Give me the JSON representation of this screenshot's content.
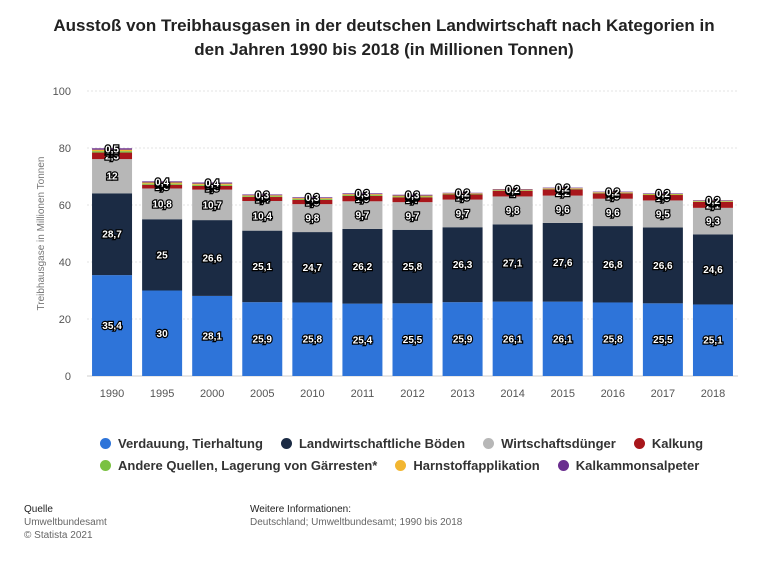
{
  "chart_data": {
    "type": "bar",
    "stacked": true,
    "title": "Ausstoß von Treibhausgasen in der deutschen Landwirtschaft nach Kategorien in den Jahren 1990 bis 2018 (in Millionen Tonnen)",
    "title_lines": [
      "Ausstoß von Treibhausgasen in der deutschen Landwirtschaft nach Kategorien in",
      "den Jahren 1990 bis 2018 (in Millionen Tonnen)"
    ],
    "xlabel": "",
    "ylabel": "Treibhausgase in Millionen Tonnen",
    "ylim": [
      0,
      100
    ],
    "yticks": [
      0,
      20,
      40,
      60,
      80,
      100
    ],
    "categories": [
      "1990",
      "1995",
      "2000",
      "2005",
      "2010",
      "2011",
      "2012",
      "2013",
      "2014",
      "2015",
      "2016",
      "2017",
      "2018"
    ],
    "series": [
      {
        "name": "Verdauung, Tierhaltung",
        "color": "#2e74d9",
        "values": [
          35.4,
          30,
          28.1,
          25.9,
          25.8,
          25.4,
          25.5,
          25.9,
          26.1,
          26.1,
          25.8,
          25.5,
          25.1
        ],
        "labels": [
          "35,4",
          "30",
          "28,1",
          "25,9",
          "25,8",
          "25,4",
          "25,5",
          "25,9",
          "26,1",
          "26,1",
          "25,8",
          "25,5",
          "25,1"
        ]
      },
      {
        "name": "Landwirtschaftliche Böden",
        "color": "#1b2b44",
        "values": [
          28.7,
          25,
          26.6,
          25.1,
          24.7,
          26.2,
          25.8,
          26.3,
          27.1,
          27.6,
          26.8,
          26.6,
          24.6
        ],
        "labels": [
          "28,7",
          "25",
          "26,6",
          "25,1",
          "24,7",
          "26,2",
          "25,8",
          "26,3",
          "27,1",
          "27,6",
          "26,8",
          "26,6",
          "24,6"
        ]
      },
      {
        "name": "Wirtschaftsdünger",
        "color": "#b7b7b7",
        "values": [
          12,
          10.8,
          10.7,
          10.4,
          9.8,
          9.7,
          9.7,
          9.7,
          9.8,
          9.6,
          9.6,
          9.5,
          9.3
        ],
        "labels": [
          "12",
          "10,8",
          "10,7",
          "10,4",
          "9,8",
          "9,7",
          "9,7",
          "9,7",
          "9,8",
          "9,6",
          "9,6",
          "9,5",
          "9,3"
        ]
      },
      {
        "name": "Kalkung",
        "color": "#a8161b",
        "values": [
          2.3,
          1.3,
          1.3,
          1.4,
          1.5,
          1.9,
          1.7,
          1.8,
          2,
          2.2,
          1.9,
          1.9,
          2.1
        ],
        "labels": [
          "2,3",
          "1,3",
          "1,3",
          "1,4",
          "1,5",
          "1,9",
          "1,7",
          "1,8",
          "2",
          "2,2",
          "1,9",
          "1,9",
          "2,1"
        ]
      },
      {
        "name": "Andere Quellen, Lagerung von Gärresten*",
        "color": "#7ac142",
        "values": [
          0.5,
          0.4,
          0.4,
          0.3,
          0.3,
          0.3,
          0.3,
          0.2,
          0.2,
          0.2,
          0.2,
          0.2,
          0.2
        ],
        "labels": [
          "0,5",
          "0,4",
          "0,4",
          "0,3",
          "0,3",
          "0,3",
          "0,3",
          "0,2",
          "0,2",
          "0,2",
          "0,2",
          "0,2",
          "0,2"
        ]
      },
      {
        "name": "Harnstoffapplikation",
        "color": "#f2b631",
        "values": [
          0.5,
          0.4,
          0.4,
          0.3,
          0.3,
          0.3,
          0.3,
          0.2,
          0.2,
          0.2,
          0.2,
          0.2,
          0.2
        ],
        "labels": [
          "0,5",
          "0,4",
          "0,4",
          "0,3",
          "0,3",
          "0,3",
          "0,3",
          "0,2",
          "0,2",
          "0,2",
          "0,2",
          "0,2",
          "0,2"
        ]
      },
      {
        "name": "Kalkammonsalpeter",
        "color": "#6a2e8f",
        "values": [
          0.5,
          0.4,
          0.4,
          0.3,
          0.3,
          0.3,
          0.3,
          0.2,
          0.2,
          0.2,
          0.2,
          0.2,
          0.2
        ],
        "labels": [
          "0,5",
          "0,4",
          "0,4",
          "0,3",
          "0,3",
          "0,3",
          "0,3",
          "0,2",
          "0,2",
          "0,2",
          "0,2",
          "0,2",
          "0,2"
        ]
      }
    ],
    "legend_position": "bottom"
  },
  "footer": {
    "source_heading": "Quelle",
    "source_name": "Umweltbundesamt",
    "copyright": "© Statista 2021",
    "info_heading": "Weitere Informationen:",
    "info_text": "Deutschland; Umweltbundesamt; 1990 bis 2018"
  }
}
